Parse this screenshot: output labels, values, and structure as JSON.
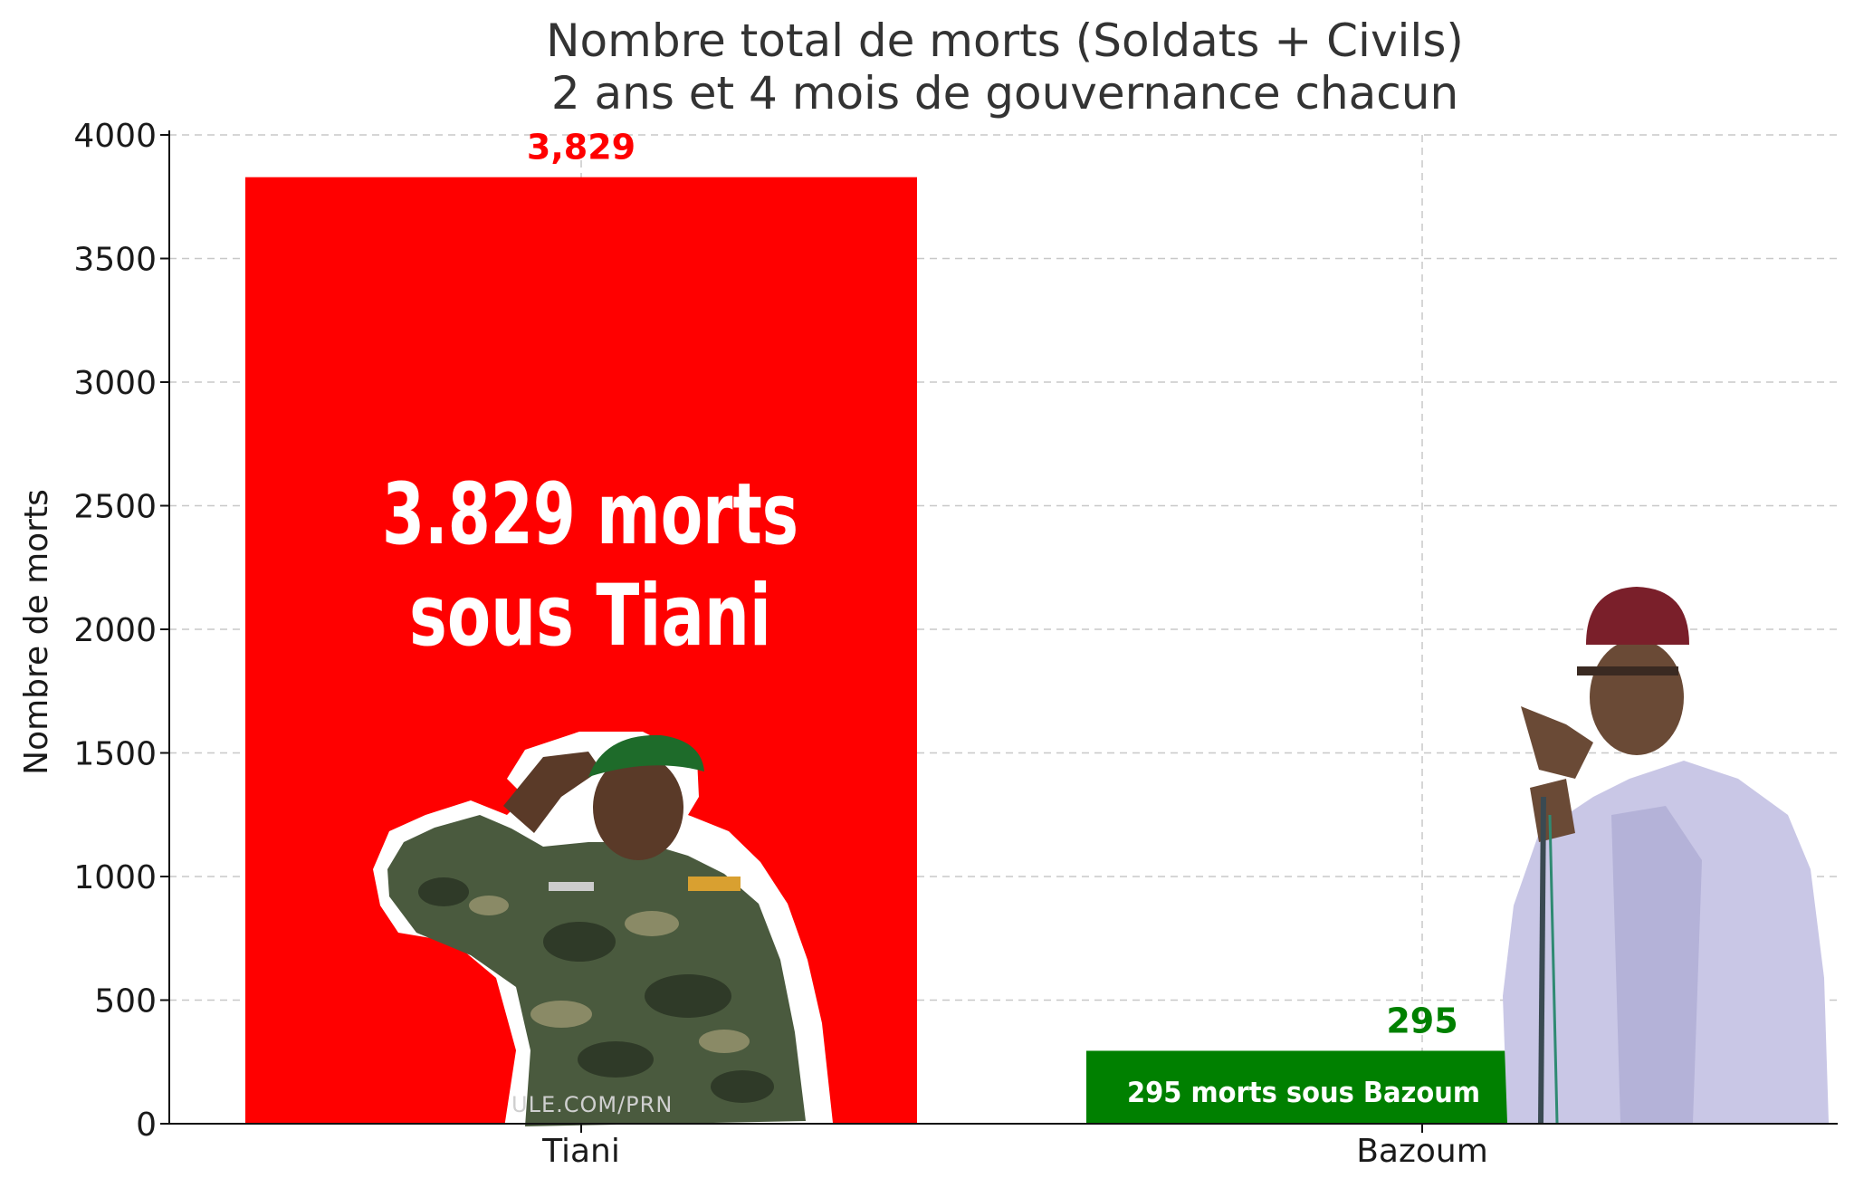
{
  "chart_data": {
    "type": "bar",
    "title": [
      "Nombre total de morts (Soldats + Civils)",
      "2 ans et 4 mois de gouvernance chacun"
    ],
    "ylabel": "Nombre de morts",
    "xlabel": "",
    "ylim": [
      0,
      4000
    ],
    "yticks": [
      0,
      500,
      1000,
      1500,
      2000,
      2500,
      3000,
      3500,
      4000
    ],
    "grid": true,
    "categories": [
      "Tiani",
      "Bazoum"
    ],
    "values": [
      3829,
      295
    ],
    "value_labels": [
      "3,829",
      "295"
    ],
    "colors": [
      "#ff0000",
      "#008000"
    ],
    "annotations": [
      {
        "lines": [
          "3.829 morts",
          "sous Tiani"
        ]
      },
      {
        "lines": [
          "295 morts sous Bazoum"
        ]
      }
    ],
    "watermark": "ULE.COM/PRN"
  }
}
